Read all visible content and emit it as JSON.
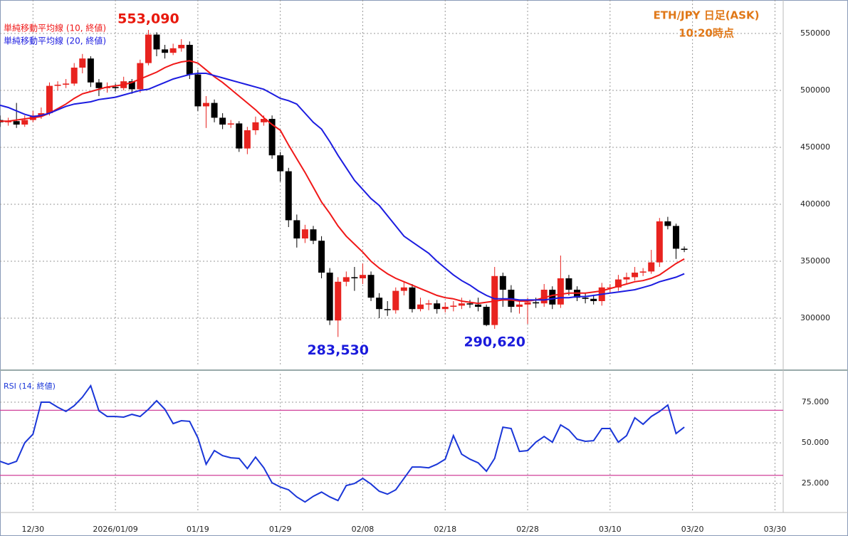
{
  "chart_data": [
    {
      "type": "candlestick",
      "title": "ETH/JPY 日足(ASK)",
      "subtitle": "10:20時点",
      "x": [
        "12/26",
        "12/27",
        "12/28",
        "12/29",
        "12/30",
        "12/31",
        "01/01",
        "01/02",
        "01/03",
        "01/04",
        "01/05",
        "01/06",
        "01/07",
        "01/08",
        "01/09",
        "01/10",
        "01/11",
        "01/12",
        "01/13",
        "01/14",
        "01/15",
        "01/16",
        "01/17",
        "01/18",
        "01/19",
        "01/20",
        "01/21",
        "01/22",
        "01/23",
        "01/24",
        "01/25",
        "01/26",
        "01/27",
        "01/28",
        "01/29",
        "01/30",
        "01/31",
        "02/01",
        "02/02",
        "02/03",
        "02/04",
        "02/05",
        "02/06",
        "02/07",
        "02/08",
        "02/09",
        "02/10",
        "02/11",
        "02/12",
        "02/13",
        "02/14",
        "02/15",
        "02/16",
        "02/17",
        "02/18",
        "02/19",
        "02/20",
        "02/21",
        "02/22",
        "02/23",
        "02/24",
        "02/25",
        "02/26",
        "02/27",
        "02/28",
        "03/01",
        "03/02",
        "03/03",
        "03/04",
        "03/05",
        "03/06",
        "03/07",
        "03/08",
        "03/09",
        "03/10",
        "03/11",
        "03/12",
        "03/13",
        "03/14",
        "03/15",
        "03/16",
        "03/17",
        "03/18",
        "03/19"
      ],
      "open": [
        474000,
        472000,
        473000,
        470000,
        474000,
        478000,
        480000,
        504000,
        505000,
        506000,
        520000,
        528000,
        507000,
        502000,
        503000,
        502000,
        508000,
        501000,
        524000,
        549000,
        536000,
        533000,
        537000,
        540000,
        514000,
        486000,
        489000,
        476000,
        470000,
        471000,
        449000,
        465000,
        472000,
        475000,
        443000,
        429000,
        386000,
        370000,
        378000,
        368000,
        340000,
        298000,
        332000,
        336000,
        335000,
        338000,
        318000,
        308000,
        307000,
        324000,
        327000,
        308000,
        312000,
        313000,
        308000,
        310000,
        311000,
        313000,
        312000,
        310000,
        294000,
        337000,
        325000,
        310000,
        312000,
        314000,
        313000,
        325000,
        312000,
        335000,
        325000,
        318000,
        317000,
        315000,
        327000,
        327000,
        334000,
        336000,
        340000,
        341000,
        349000,
        385000,
        381000,
        361000
      ],
      "high": [
        478000,
        476000,
        489000,
        478000,
        482000,
        485000,
        507000,
        508000,
        510000,
        524000,
        532000,
        530000,
        510000,
        507000,
        506000,
        512000,
        510000,
        527000,
        553090,
        551000,
        540000,
        541000,
        545000,
        543000,
        518000,
        495000,
        492000,
        480000,
        474000,
        473000,
        468000,
        477000,
        478000,
        478000,
        446000,
        432000,
        391000,
        382000,
        381000,
        372000,
        344000,
        336000,
        341000,
        345000,
        348000,
        341000,
        322000,
        315000,
        327000,
        332000,
        330000,
        318000,
        316000,
        316000,
        314000,
        315000,
        318000,
        316000,
        318000,
        312000,
        345000,
        340000,
        329000,
        315000,
        318000,
        318000,
        330000,
        328000,
        355000,
        338000,
        328000,
        322000,
        320000,
        331000,
        330000,
        338000,
        340000,
        345000,
        344000,
        360000,
        388000,
        389000,
        383000,
        363000
      ],
      "low": [
        468000,
        469000,
        467000,
        468000,
        472000,
        475000,
        478000,
        500000,
        502000,
        504000,
        515000,
        503000,
        495000,
        498000,
        499000,
        500000,
        497000,
        498000,
        522000,
        530000,
        528000,
        531000,
        534000,
        510000,
        482000,
        467000,
        472000,
        466000,
        467000,
        446000,
        444000,
        461000,
        469000,
        440000,
        420000,
        380000,
        362000,
        366000,
        365000,
        335000,
        294000,
        283530,
        328000,
        324000,
        330000,
        315000,
        300000,
        302000,
        304000,
        320000,
        305000,
        306000,
        307000,
        304000,
        305000,
        306000,
        308000,
        309000,
        306000,
        293000,
        290620,
        310000,
        305000,
        304000,
        295000,
        309000,
        310000,
        308000,
        309000,
        320000,
        315000,
        313000,
        312000,
        311000,
        322000,
        324000,
        330000,
        333000,
        337000,
        339000,
        345000,
        378000,
        352000,
        358000
      ],
      "close": [
        472000,
        473000,
        470000,
        474000,
        478000,
        480000,
        504000,
        505000,
        506000,
        520000,
        528000,
        507000,
        502000,
        503000,
        502000,
        508000,
        501000,
        524000,
        549000,
        536000,
        533000,
        537000,
        540000,
        514000,
        486000,
        489000,
        476000,
        470000,
        471000,
        449000,
        465000,
        472000,
        475000,
        443000,
        429000,
        386000,
        370000,
        378000,
        368000,
        340000,
        298000,
        332000,
        336000,
        335000,
        338000,
        318000,
        308000,
        307000,
        324000,
        327000,
        308000,
        312000,
        313000,
        308000,
        310000,
        311000,
        313000,
        312000,
        310000,
        294000,
        337000,
        325000,
        310000,
        312000,
        314000,
        313000,
        325000,
        312000,
        335000,
        325000,
        318000,
        317000,
        315000,
        327000,
        327000,
        334000,
        336000,
        340000,
        341000,
        349000,
        385000,
        381000,
        361000,
        360000
      ],
      "up_color": "#e8231f",
      "down_color": "#000000",
      "series": [
        {
          "name": "単純移動平均線 (10, 終値)",
          "color": "#f01818",
          "values": [
            473000,
            473000,
            474000,
            475000,
            476000,
            477000,
            480000,
            484000,
            488000,
            493000,
            497000,
            499000,
            501000,
            503000,
            504000,
            505000,
            507000,
            510000,
            513000,
            516000,
            520000,
            523000,
            525000,
            526000,
            524000,
            518000,
            512000,
            507000,
            501000,
            495000,
            489000,
            483000,
            476000,
            470000,
            465000,
            452000,
            440000,
            428000,
            415000,
            402000,
            392000,
            381000,
            372000,
            365000,
            358000,
            350000,
            344000,
            339000,
            335000,
            332000,
            329000,
            326000,
            323000,
            320000,
            318000,
            317000,
            315000,
            314000,
            313000,
            314000,
            315000,
            316000,
            316000,
            315000,
            315000,
            316000,
            318000,
            320000,
            321000,
            322000,
            322000,
            322000,
            323000,
            324000,
            326000,
            328000,
            330000,
            332000,
            333000,
            335000,
            338000,
            343000,
            348000,
            352000
          ]
        },
        {
          "name": "単純移動平均線 (20, 終値)",
          "color": "#1c1ce0",
          "values": [
            487000,
            485000,
            482000,
            479000,
            477000,
            478000,
            480000,
            483000,
            486000,
            488000,
            489000,
            490000,
            492000,
            493000,
            494000,
            496000,
            498000,
            500000,
            501000,
            504000,
            507000,
            510000,
            512000,
            514000,
            515000,
            515000,
            513000,
            511000,
            509000,
            507000,
            505000,
            503000,
            501000,
            497000,
            493000,
            491000,
            488000,
            480000,
            472000,
            466000,
            455000,
            443000,
            432000,
            421000,
            413000,
            405000,
            399000,
            390000,
            381000,
            372000,
            367000,
            362000,
            357000,
            350000,
            344000,
            338000,
            333000,
            329000,
            324000,
            320000,
            317000,
            317000,
            317000,
            316000,
            316000,
            316000,
            316000,
            317000,
            318000,
            318000,
            319000,
            319000,
            320000,
            321000,
            322000,
            323000,
            324000,
            325000,
            327000,
            329000,
            332000,
            334000,
            336000,
            339000
          ]
        }
      ],
      "annotations": [
        {
          "x": "01/13",
          "value": 553090,
          "label": "553,090",
          "color": "#e8180c",
          "position": "above"
        },
        {
          "x": "02/05",
          "value": 283530,
          "label": "283,530",
          "color": "#1a1adc",
          "position": "below"
        },
        {
          "x": "02/24",
          "value": 290620,
          "label": "290,620",
          "color": "#1a1adc",
          "position": "below"
        }
      ],
      "xlim": [
        "12/26",
        "03/31"
      ],
      "xticks": [
        "12/30",
        "2026/01/09",
        "01/19",
        "01/29",
        "02/08",
        "02/18",
        "02/28",
        "03/10",
        "03/20",
        "03/30"
      ],
      "ylim": [
        257500,
        579375
      ],
      "yticks": [
        300000,
        350000,
        400000,
        450000,
        500000,
        550000
      ],
      "grid": true
    },
    {
      "type": "line",
      "title": "RSI (14, 終値)",
      "series": [
        {
          "color": "#1a36d8",
          "values": [
            38.6,
            36.8,
            38.6,
            50,
            55.3,
            75,
            75,
            71.9,
            69.3,
            72.8,
            78.1,
            85.1,
            69.7,
            66.2,
            66.2,
            65.8,
            67.5,
            66.2,
            70.6,
            75.9,
            70.6,
            61.8,
            63.6,
            63.2,
            53.1,
            36.8,
            45.2,
            42.1,
            40.8,
            40.4,
            34.2,
            41.2,
            34.6,
            25.4,
            22.8,
            21.1,
            16.7,
            13.6,
            17.1,
            19.7,
            16.7,
            14.5,
            23.7,
            25.0,
            28.1,
            24.6,
            20.2,
            18.4,
            21.1,
            28.1,
            35.1,
            35.1,
            34.6,
            36.8,
            39.9,
            54.4,
            43.0,
            39.9,
            37.7,
            32.5,
            40.4,
            59.6,
            58.8,
            44.7,
            45.2,
            50.4,
            53.9,
            50.4,
            61.0,
            57.9,
            52.2,
            50.9,
            51.3,
            58.8,
            58.8,
            50.4,
            54.4,
            65.4,
            61.4,
            66.2,
            69.3,
            73.2,
            55.7,
            59.6
          ]
        }
      ],
      "reference_lines": [
        70,
        30
      ],
      "reference_color": "#d0409a",
      "ylim": [
        8,
        92.5
      ],
      "yticks": [
        {
          "value": 25,
          "label": "25.000"
        },
        {
          "value": 50,
          "label": "50.000"
        },
        {
          "value": 75,
          "label": "75.000"
        }
      ],
      "grid": true
    }
  ]
}
